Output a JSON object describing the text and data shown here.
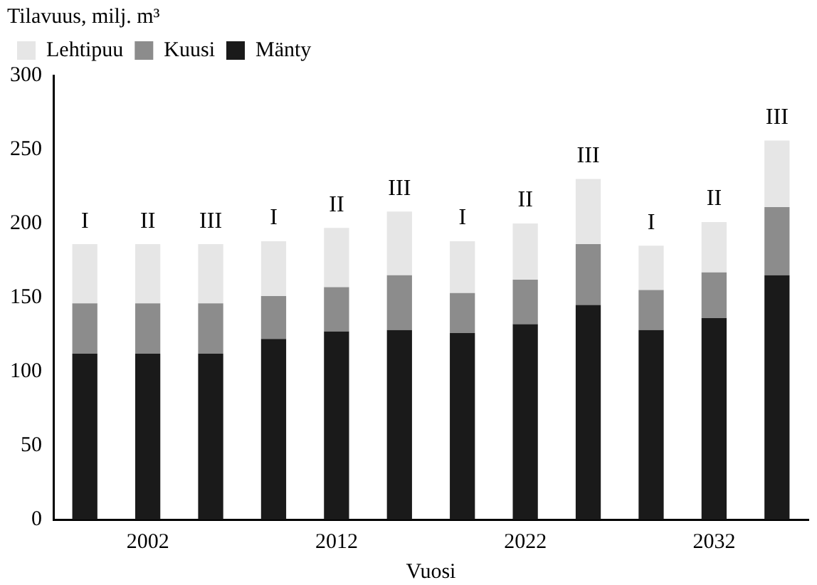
{
  "chart_data": {
    "type": "bar",
    "stacked": true,
    "ylabel": "Tilavuus, milj. m³",
    "xlabel": "Vuosi",
    "categories": [
      null,
      "2002",
      null,
      null,
      "2012",
      null,
      null,
      "2022",
      null,
      null,
      "2032",
      null
    ],
    "series": [
      {
        "name": "Mänty",
        "color": "#1a1a1a",
        "values": [
          112,
          112,
          112,
          122,
          127,
          128,
          126,
          132,
          145,
          128,
          136,
          165
        ]
      },
      {
        "name": "Kuusi",
        "color": "#8c8c8c",
        "values": [
          34,
          34,
          34,
          29,
          30,
          37,
          27,
          30,
          41,
          27,
          31,
          46
        ]
      },
      {
        "name": "Lehtipuu",
        "color": "#e6e6e6",
        "values": [
          40,
          40,
          40,
          37,
          40,
          43,
          35,
          38,
          44,
          30,
          34,
          45
        ]
      }
    ],
    "annotations": [
      "I",
      "II",
      "III",
      "I",
      "II",
      "III",
      "I",
      "II",
      "III",
      "I",
      "II",
      "III"
    ],
    "ylim": [
      0,
      300
    ],
    "yticks": [
      0,
      50,
      100,
      150,
      200,
      250,
      300
    ],
    "grid": false,
    "legend": "top left"
  }
}
